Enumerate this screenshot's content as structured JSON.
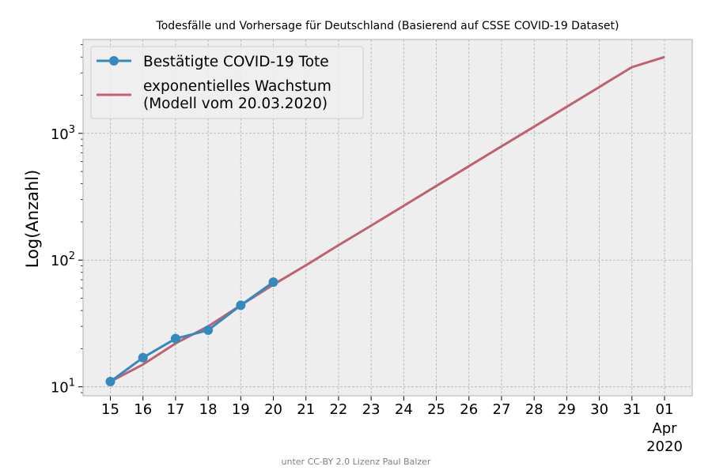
{
  "chart_data": {
    "type": "line",
    "title": "Todesfälle und Vorhersage für Deutschland (Basierend auf CSSE COVID-19 Dataset)",
    "xlabel": "",
    "ylabel": "Log(Anzahl)",
    "y_scale": "log",
    "ylim": [
      8.5,
      5500
    ],
    "y_ticks": [
      {
        "value": 10,
        "label": "10¹",
        "base": "10",
        "exp": "1"
      },
      {
        "value": 100,
        "label": "10²",
        "base": "10",
        "exp": "2"
      },
      {
        "value": 1000,
        "label": "10³",
        "base": "10",
        "exp": "3"
      }
    ],
    "x_ticks": [
      "15",
      "16",
      "17",
      "18",
      "19",
      "20",
      "21",
      "22",
      "23",
      "24",
      "25",
      "26",
      "27",
      "28",
      "29",
      "30",
      "31",
      "01"
    ],
    "x_tick_sublabel": {
      "month": "Apr",
      "year": "2020"
    },
    "x_dates": [
      "2020-03-15",
      "2020-03-16",
      "2020-03-17",
      "2020-03-18",
      "2020-03-19",
      "2020-03-20",
      "2020-03-21",
      "2020-03-22",
      "2020-03-23",
      "2020-03-24",
      "2020-03-25",
      "2020-03-26",
      "2020-03-27",
      "2020-03-28",
      "2020-03-29",
      "2020-03-30",
      "2020-03-31",
      "2020-04-01"
    ],
    "grid": true,
    "legend_position": "top-left",
    "series": [
      {
        "name": "Bestätigte COVID-19 Tote",
        "color": "#348abd",
        "marker": "circle",
        "x": [
          "2020-03-15",
          "2020-03-16",
          "2020-03-17",
          "2020-03-18",
          "2020-03-19",
          "2020-03-20"
        ],
        "values": [
          11,
          17,
          24,
          28,
          44,
          67
        ]
      },
      {
        "name": "exponentielles Wachstum\n(Modell vom 20.03.2020)",
        "name_lines": [
          "exponentielles Wachstum",
          "(Modell vom 20.03.2020)"
        ],
        "color": "#c06070",
        "marker": "none",
        "x": [
          "2020-03-15",
          "2020-03-16",
          "2020-03-17",
          "2020-03-18",
          "2020-03-19",
          "2020-03-20",
          "2020-03-21",
          "2020-03-22",
          "2020-03-23",
          "2020-03-24",
          "2020-03-25",
          "2020-03-26",
          "2020-03-27",
          "2020-03-28",
          "2020-03-29",
          "2020-03-30",
          "2020-03-31",
          "2020-04-01"
        ],
        "values": [
          11,
          15,
          22,
          30,
          44,
          64,
          91,
          131,
          187,
          268,
          385,
          551,
          790,
          1130,
          1620,
          2320,
          3330,
          4000
        ]
      }
    ]
  },
  "footer": "unter CC-BY 2.0 Lizenz Paul Balzer",
  "colors": {
    "background": "#eeeeee",
    "frame": "#bcbcbc",
    "grid": "#b0b0b0"
  }
}
